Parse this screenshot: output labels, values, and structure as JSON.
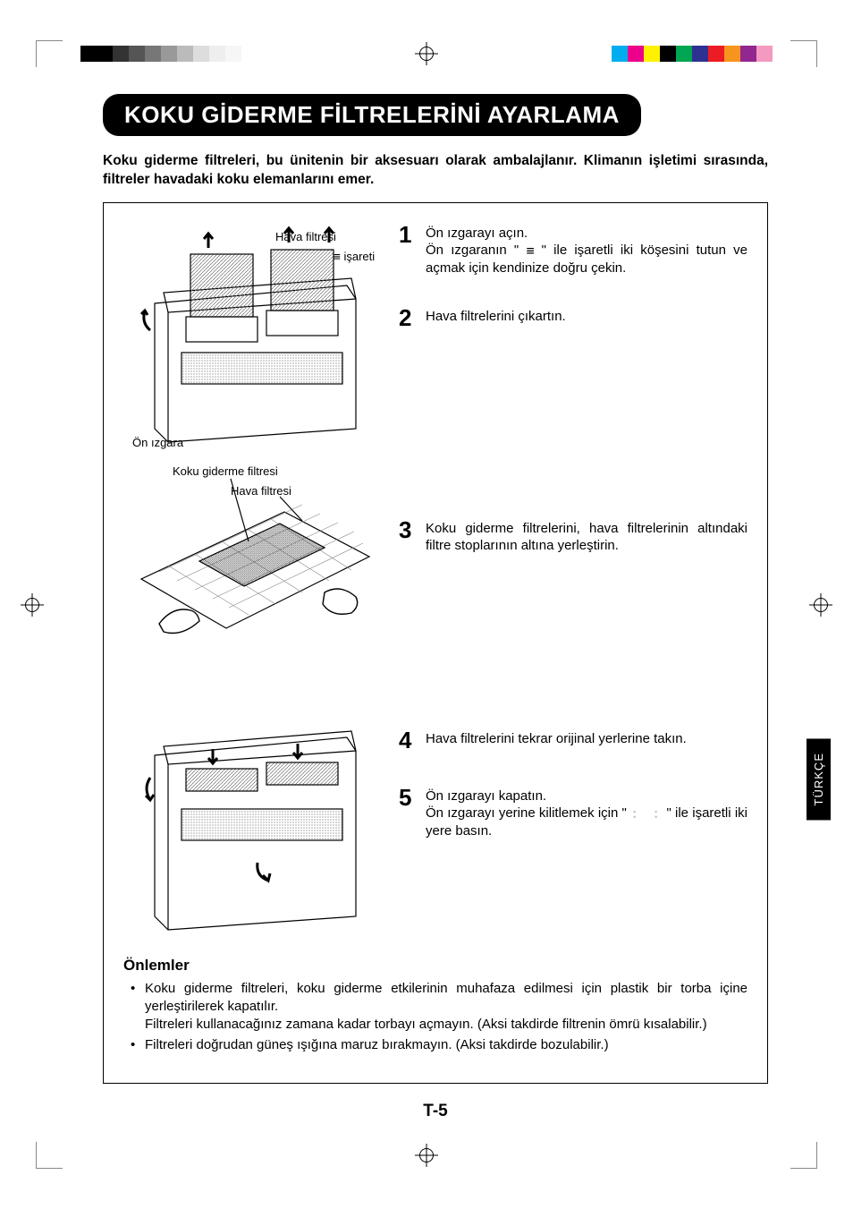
{
  "title": "KOKU GİDERME FİLTRELERİNİ AYARLAMA",
  "intro": "Koku giderme filtreleri, bu ünitenin bir aksesuarı olarak ambalajlanır. Klimanın işletimi sırasında, filtreler havadaki koku elemanlarını emer.",
  "labels": {
    "hava_filtresi": "Hava filtresi",
    "isareti": "işareti",
    "on_izgara": "Ön ızgara",
    "koku_giderme_filtresi": "Koku giderme filtresi",
    "hava_filtresi2": "Hava filtresi"
  },
  "steps": {
    "s1": {
      "num": "1",
      "line1": "Ön ızgarayı açın.",
      "line2_a": "Ön ızgaranın \" ",
      "line2_b": " \" ile işaretli iki köşesini tutun ve açmak için kendinize doğru çekin."
    },
    "s2": {
      "num": "2",
      "text": "Hava filtrelerini çıkartın."
    },
    "s3": {
      "num": "3",
      "text": "Koku giderme filtrelerini, hava filtrelerinin altındaki filtre stoplarının altına yerleştirin."
    },
    "s4": {
      "num": "4",
      "text": "Hava filtrelerini tekrar orijinal yerlerine takın."
    },
    "s5": {
      "num": "5",
      "line1": "Ön ızgarayı kapatın.",
      "line2_a": "Ön ızgarayı yerine kilitlemek için \"",
      "line2_b": "\" ile işaretli iki yere basın."
    }
  },
  "precautions": {
    "title": "Önlemler",
    "items": [
      "Koku giderme filtreleri, koku giderme etkilerinin muhafaza edilmesi için plastik bir torba içine yerleştirilerek kapatılır.\nFiltreleri kullanacağınız zamana kadar torbayı açmayın. (Aksi takdirde filtrenin ömrü kısalabilir.)",
      "Filtreleri doğrudan güneş ışığına maruz bırakmayın. (Aksi takdirde bozulabilir.)"
    ]
  },
  "page_number": "T-5",
  "side_tab": "TÜRKÇE",
  "crop_colors": {
    "left_bar": [
      "#000000",
      "#000000",
      "#333333",
      "#555555",
      "#777777",
      "#999999",
      "#bbbbbb",
      "#dddddd",
      "#eeeeee",
      "#f6f6f6"
    ],
    "right_bar": [
      "#00aeef",
      "#ec008c",
      "#fff200",
      "#000000",
      "#00a651",
      "#2e3192",
      "#ed1c24",
      "#f7941d",
      "#92278f",
      "#f49ac1"
    ]
  },
  "svg_stroke": "#000000",
  "svg_hatch": "#6f6f6f"
}
